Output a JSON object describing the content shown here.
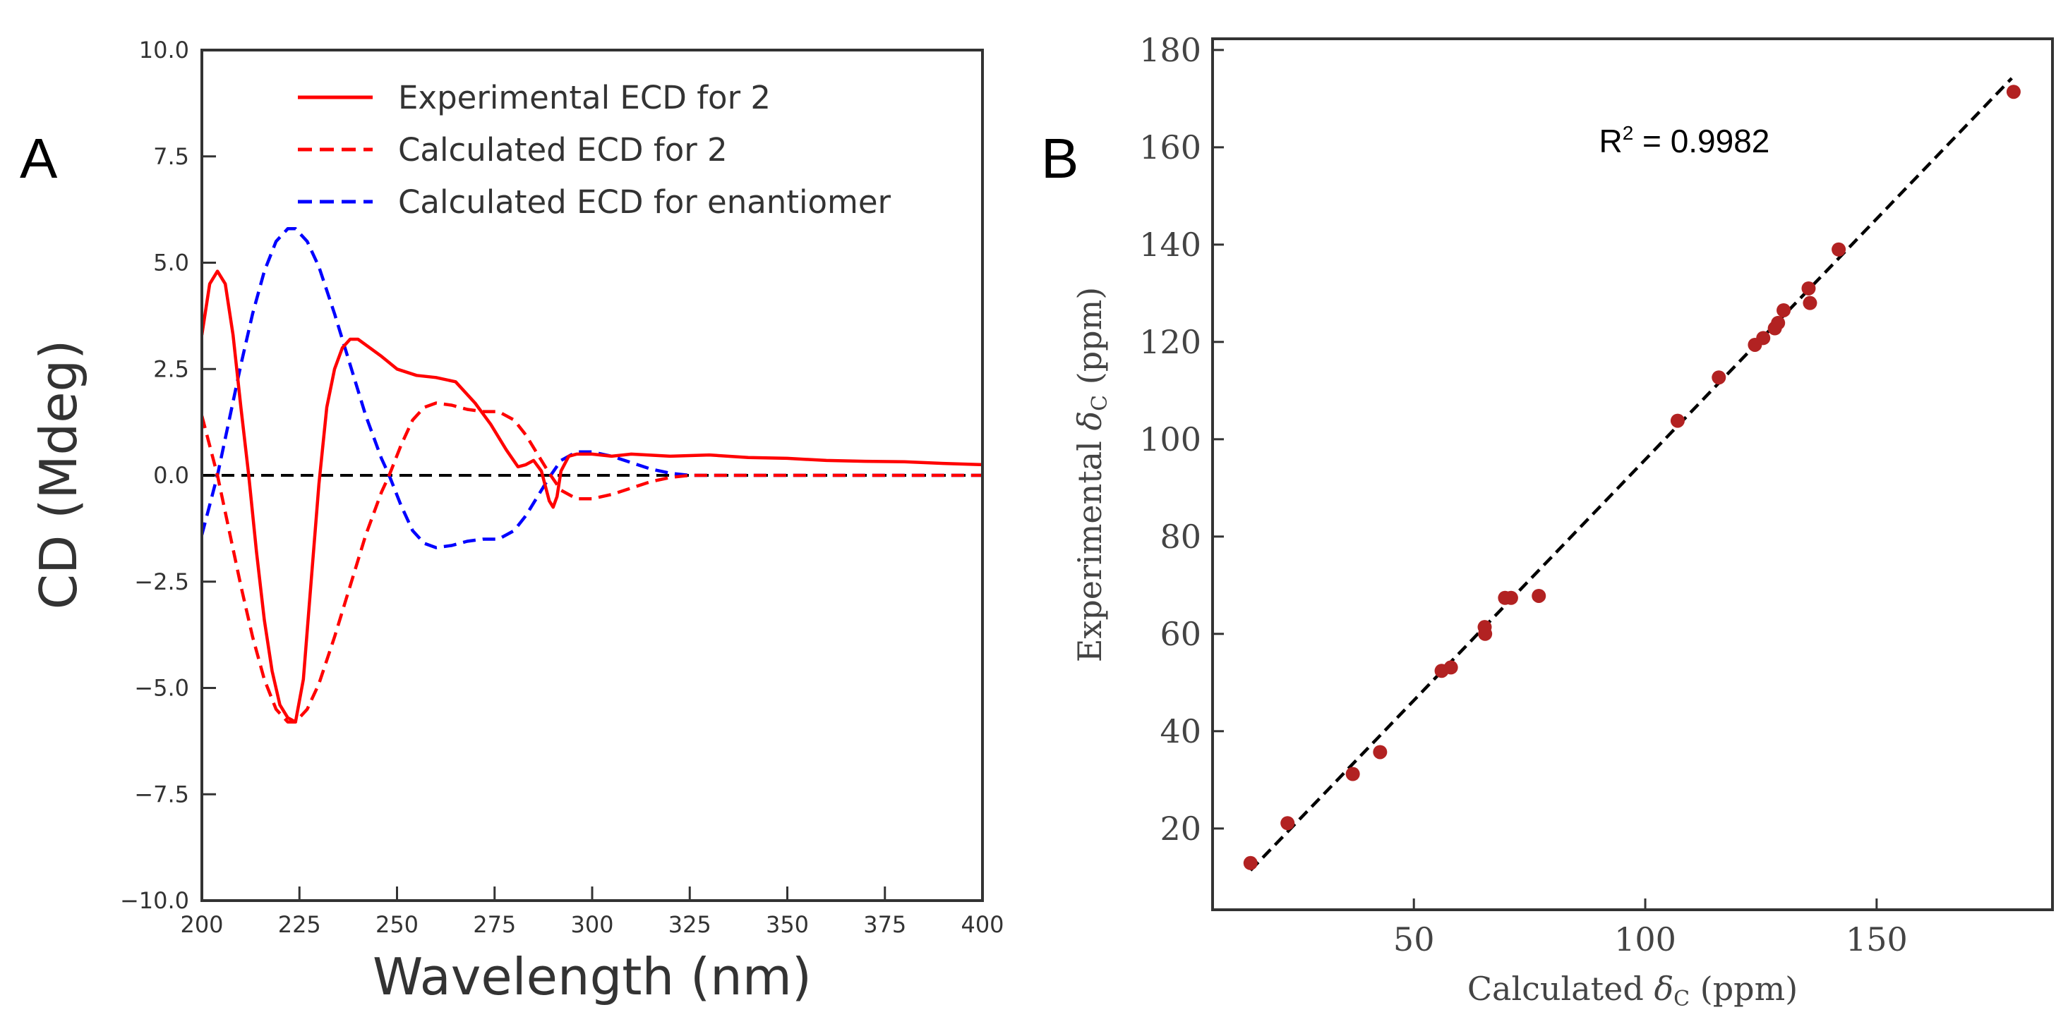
{
  "panel_labels": {
    "a": "A",
    "b": "B"
  },
  "chart_data": [
    {
      "type": "line",
      "panel": "A",
      "xlabel": "Wavelength (nm)",
      "ylabel": "CD (Mdeg)",
      "xlim": [
        200,
        400
      ],
      "ylim": [
        -10,
        10
      ],
      "xticks": [
        200,
        225,
        250,
        275,
        300,
        325,
        350,
        375,
        400
      ],
      "xtick_labels": [
        "200",
        "225",
        "250",
        "275",
        "300",
        "325",
        "350",
        "375",
        "400"
      ],
      "yticks": [
        10,
        7.5,
        5,
        2.5,
        0,
        -2.5,
        -5,
        -7.5,
        -10
      ],
      "ytick_labels": [
        "10.0",
        "7.5",
        "5.0",
        "2.5",
        "0.0",
        "−2.5",
        "−5.0",
        "−7.5",
        "−10.0"
      ],
      "legend_position": "top-right",
      "zero_line": {
        "y": 0,
        "color": "#000000",
        "style": "dashed"
      },
      "series": [
        {
          "name": "Experimental ECD for 2",
          "color": "#ff0000",
          "style": "solid",
          "x": [
            200,
            202,
            204,
            206,
            208,
            210,
            212,
            214,
            216,
            218,
            220,
            222,
            224,
            226,
            228,
            230,
            232,
            234,
            236,
            238,
            240,
            243,
            246,
            250,
            255,
            260,
            265,
            270,
            274,
            278,
            281,
            283,
            285,
            287,
            289,
            290,
            291,
            292,
            294,
            296,
            300,
            305,
            310,
            320,
            330,
            340,
            350,
            360,
            370,
            380,
            390,
            400
          ],
          "y": [
            3.3,
            4.5,
            4.8,
            4.5,
            3.3,
            1.6,
            0.0,
            -1.8,
            -3.4,
            -4.6,
            -5.4,
            -5.7,
            -5.8,
            -4.8,
            -2.5,
            -0.2,
            1.6,
            2.5,
            3.0,
            3.2,
            3.2,
            3.0,
            2.8,
            2.5,
            2.35,
            2.3,
            2.2,
            1.7,
            1.2,
            0.6,
            0.2,
            0.25,
            0.35,
            0.1,
            -0.6,
            -0.75,
            -0.5,
            0.1,
            0.45,
            0.5,
            0.5,
            0.45,
            0.5,
            0.45,
            0.48,
            0.42,
            0.4,
            0.35,
            0.33,
            0.32,
            0.28,
            0.25
          ]
        },
        {
          "name": "Calculated ECD for 2",
          "color": "#ff0000",
          "style": "dashed",
          "x": [
            200,
            202,
            204,
            207,
            210,
            213,
            216,
            219,
            222,
            224,
            227,
            230,
            234,
            238,
            242,
            246,
            248,
            251,
            254,
            257,
            260,
            264,
            268,
            272,
            276,
            280,
            283,
            286,
            289,
            292,
            296,
            300,
            305,
            310,
            315,
            320,
            325,
            330,
            340,
            360,
            380,
            400
          ],
          "y": [
            1.4,
            0.7,
            0.0,
            -1.3,
            -2.6,
            -3.8,
            -4.8,
            -5.5,
            -5.8,
            -5.8,
            -5.5,
            -4.9,
            -3.8,
            -2.6,
            -1.4,
            -0.4,
            0.0,
            0.7,
            1.3,
            1.6,
            1.7,
            1.65,
            1.55,
            1.5,
            1.5,
            1.3,
            0.95,
            0.5,
            0.05,
            -0.35,
            -0.55,
            -0.55,
            -0.45,
            -0.3,
            -0.15,
            -0.05,
            0.0,
            0.0,
            0.0,
            0.0,
            0.0,
            0.0
          ]
        },
        {
          "name": "Calculated ECD for enantiomer",
          "color": "#0000ff",
          "style": "dashed",
          "x": [
            200,
            202,
            204,
            207,
            210,
            213,
            216,
            219,
            222,
            224,
            227,
            230,
            234,
            238,
            242,
            246,
            248,
            251,
            254,
            257,
            260,
            264,
            268,
            272,
            276,
            280,
            283,
            286,
            289,
            292,
            296,
            300,
            305,
            310,
            315,
            320,
            325,
            330,
            340,
            360,
            380,
            400
          ],
          "y": [
            -1.4,
            -0.7,
            0.0,
            1.3,
            2.6,
            3.8,
            4.8,
            5.5,
            5.8,
            5.8,
            5.5,
            4.9,
            3.8,
            2.6,
            1.4,
            0.4,
            0.0,
            -0.7,
            -1.3,
            -1.6,
            -1.7,
            -1.65,
            -1.55,
            -1.5,
            -1.5,
            -1.3,
            -0.95,
            -0.5,
            -0.05,
            0.35,
            0.55,
            0.55,
            0.45,
            0.3,
            0.15,
            0.05,
            0.0,
            0.0,
            0.0,
            0.0,
            0.0,
            0.0
          ]
        }
      ]
    },
    {
      "type": "scatter",
      "panel": "B",
      "xlabel": "Calculated δC (ppm)",
      "ylabel": "Experimental δC (ppm)",
      "xlabel_parts": {
        "pre": "Calculated ",
        "delta": "δ",
        "sub": "C",
        "post": " (ppm)"
      },
      "ylabel_parts": {
        "pre": "Experimental ",
        "delta": "δ",
        "sub": "C",
        "post": " (ppm)"
      },
      "xlim": [
        6.5,
        188
      ],
      "ylim": [
        3.3,
        182.3
      ],
      "xticks": [
        50,
        100,
        150
      ],
      "xtick_labels": [
        "50",
        "100",
        "150"
      ],
      "yticks": [
        20,
        40,
        60,
        80,
        100,
        120,
        140,
        160,
        180
      ],
      "ytick_labels": [
        "20",
        "40",
        "60",
        "80",
        "100",
        "120",
        "140",
        "160",
        "180"
      ],
      "annotation": {
        "base": "R",
        "sup": "2",
        "rest": " = 0.9982",
        "x": 90,
        "y": 159
      },
      "point_color": "#b22222",
      "fit_line": {
        "x": [
          14.7,
          179.2
        ],
        "y": [
          11.4,
          174.2
        ],
        "color": "#000000",
        "style": "dashed"
      },
      "points": {
        "x": [
          14.7,
          22.7,
          36.8,
          42.7,
          56.0,
          58.0,
          65.3,
          65.4,
          69.7,
          71.0,
          77.0,
          107.0,
          115.9,
          123.7,
          125.5,
          128.0,
          128.7,
          129.9,
          135.3,
          135.6,
          141.8,
          179.6
        ],
        "y": [
          12.9,
          21.1,
          31.2,
          35.7,
          52.4,
          53.1,
          61.4,
          60.0,
          67.4,
          67.4,
          67.8,
          103.8,
          112.7,
          119.4,
          120.8,
          122.8,
          123.9,
          126.5,
          131.0,
          128.0,
          139.0,
          171.4
        ]
      }
    }
  ]
}
